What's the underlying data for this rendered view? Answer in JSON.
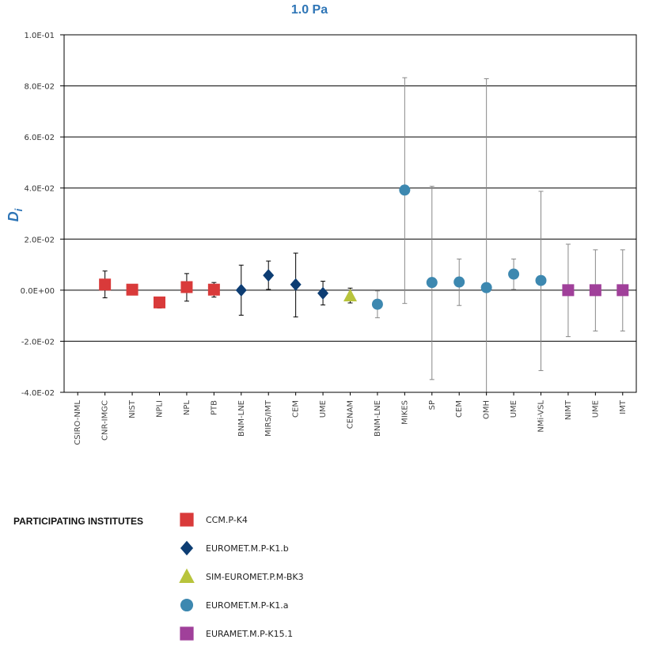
{
  "chart_data": {
    "type": "scatter",
    "title": "1.0 Pa",
    "ylabel": "D",
    "ylabel_subscript": "i",
    "ylim": [
      -0.04,
      0.1
    ],
    "yticks": [
      {
        "value": 0.1,
        "label": "1.0E-01"
      },
      {
        "value": 0.08,
        "label": "8.0E-02"
      },
      {
        "value": 0.06,
        "label": "6.0E-02"
      },
      {
        "value": 0.04,
        "label": "4.0E-02"
      },
      {
        "value": 0.02,
        "label": "2.0E-02"
      },
      {
        "value": 0.0,
        "label": "0.0E+00"
      },
      {
        "value": -0.02,
        "label": "-2.0E-02"
      },
      {
        "value": -0.04,
        "label": "-4.0E-02"
      }
    ],
    "grid": "horizontal",
    "categories": [
      "CSIRO-NML",
      "CNR-IMGC",
      "NIST",
      "NPLI",
      "NPL",
      "PTB",
      "BNM-LNE",
      "MIRS/IMT",
      "CEM",
      "UME",
      "CENAM",
      "BNM-LNE",
      "MIKES",
      "SP",
      "CEM",
      "OMH",
      "UME",
      "NMi-VSL",
      "NIMT",
      "UME",
      "IMT"
    ],
    "series": [
      {
        "name": "CCM.P-K4",
        "marker": "square",
        "color": "#d93a3a",
        "points": [
          {
            "x": "CNR-IMGC",
            "y": 0.0022,
            "err_low": -0.003,
            "err_high": 0.0075
          },
          {
            "x": "NIST",
            "y": 0.0002,
            "err_low": 0.0,
            "err_high": 0.0005
          },
          {
            "x": "NPLI",
            "y": -0.0048,
            "err_low": -0.007,
            "err_high": -0.0035
          },
          {
            "x": "NPL",
            "y": 0.0012,
            "err_low": -0.0043,
            "err_high": 0.0065
          },
          {
            "x": "PTB",
            "y": 0.0002,
            "err_low": -0.0027,
            "err_high": 0.003
          }
        ]
      },
      {
        "name": "EUROMET.M.P-K1.b",
        "marker": "diamond",
        "color": "#0d3d73",
        "points": [
          {
            "x": "BNM-LNE",
            "y": 0.0,
            "err_low": -0.0098,
            "err_high": 0.0098
          },
          {
            "x": "MIRS/IMT",
            "y": 0.0058,
            "err_low": 0.0003,
            "err_high": 0.0114
          },
          {
            "x": "CEM",
            "y": 0.0022,
            "err_low": -0.0105,
            "err_high": 0.0145
          },
          {
            "x": "UME",
            "y": -0.0012,
            "err_low": -0.0058,
            "err_high": 0.0035
          }
        ]
      },
      {
        "name": "SIM-EUROMET.P.M-BK3",
        "marker": "triangle",
        "color": "#b8c43c",
        "points": [
          {
            "x": "CENAM",
            "y": -0.0022,
            "err_low": -0.005,
            "err_high": 0.0008
          }
        ]
      },
      {
        "name": "EUROMET.M.P-K1.a",
        "marker": "circle",
        "color": "#3d88b0",
        "points": [
          {
            "x": "BNM-LNE",
            "y": -0.0055,
            "err_low": -0.0108,
            "err_high": -0.0003
          },
          {
            "x": "MIKES",
            "y": 0.0392,
            "err_low": -0.0052,
            "err_high": 0.0832
          },
          {
            "x": "SP",
            "y": 0.003,
            "err_low": -0.035,
            "err_high": 0.0407
          },
          {
            "x": "CEM",
            "y": 0.0032,
            "err_low": -0.006,
            "err_high": 0.0122
          },
          {
            "x": "OMH",
            "y": 0.001,
            "err_low": -0.04,
            "err_high": 0.0828
          },
          {
            "x": "UME",
            "y": 0.0063,
            "err_low": 0.0003,
            "err_high": 0.0122
          },
          {
            "x": "NMi-VSL",
            "y": 0.0038,
            "err_low": -0.0315,
            "err_high": 0.0387
          }
        ]
      },
      {
        "name": "EURAMET.M.P-K15.1",
        "marker": "square",
        "color": "#a0409a",
        "points": [
          {
            "x": "NIMT",
            "y": 0.0,
            "err_low": -0.0182,
            "err_high": 0.018
          },
          {
            "x": "UME",
            "y": 0.0,
            "err_low": -0.016,
            "err_high": 0.0158
          },
          {
            "x": "IMT",
            "y": 0.0,
            "err_low": -0.016,
            "err_high": 0.0158
          }
        ]
      }
    ],
    "legend": {
      "title": "PARTICIPATING INSTITUTES",
      "placement": "bottom",
      "items": [
        "CCM.P-K4",
        "EUROMET.M.P-K1.b",
        "SIM-EUROMET.P.M-BK3",
        "EUROMET.M.P-K1.a",
        "EURAMET.M.P-K15.1"
      ]
    }
  }
}
